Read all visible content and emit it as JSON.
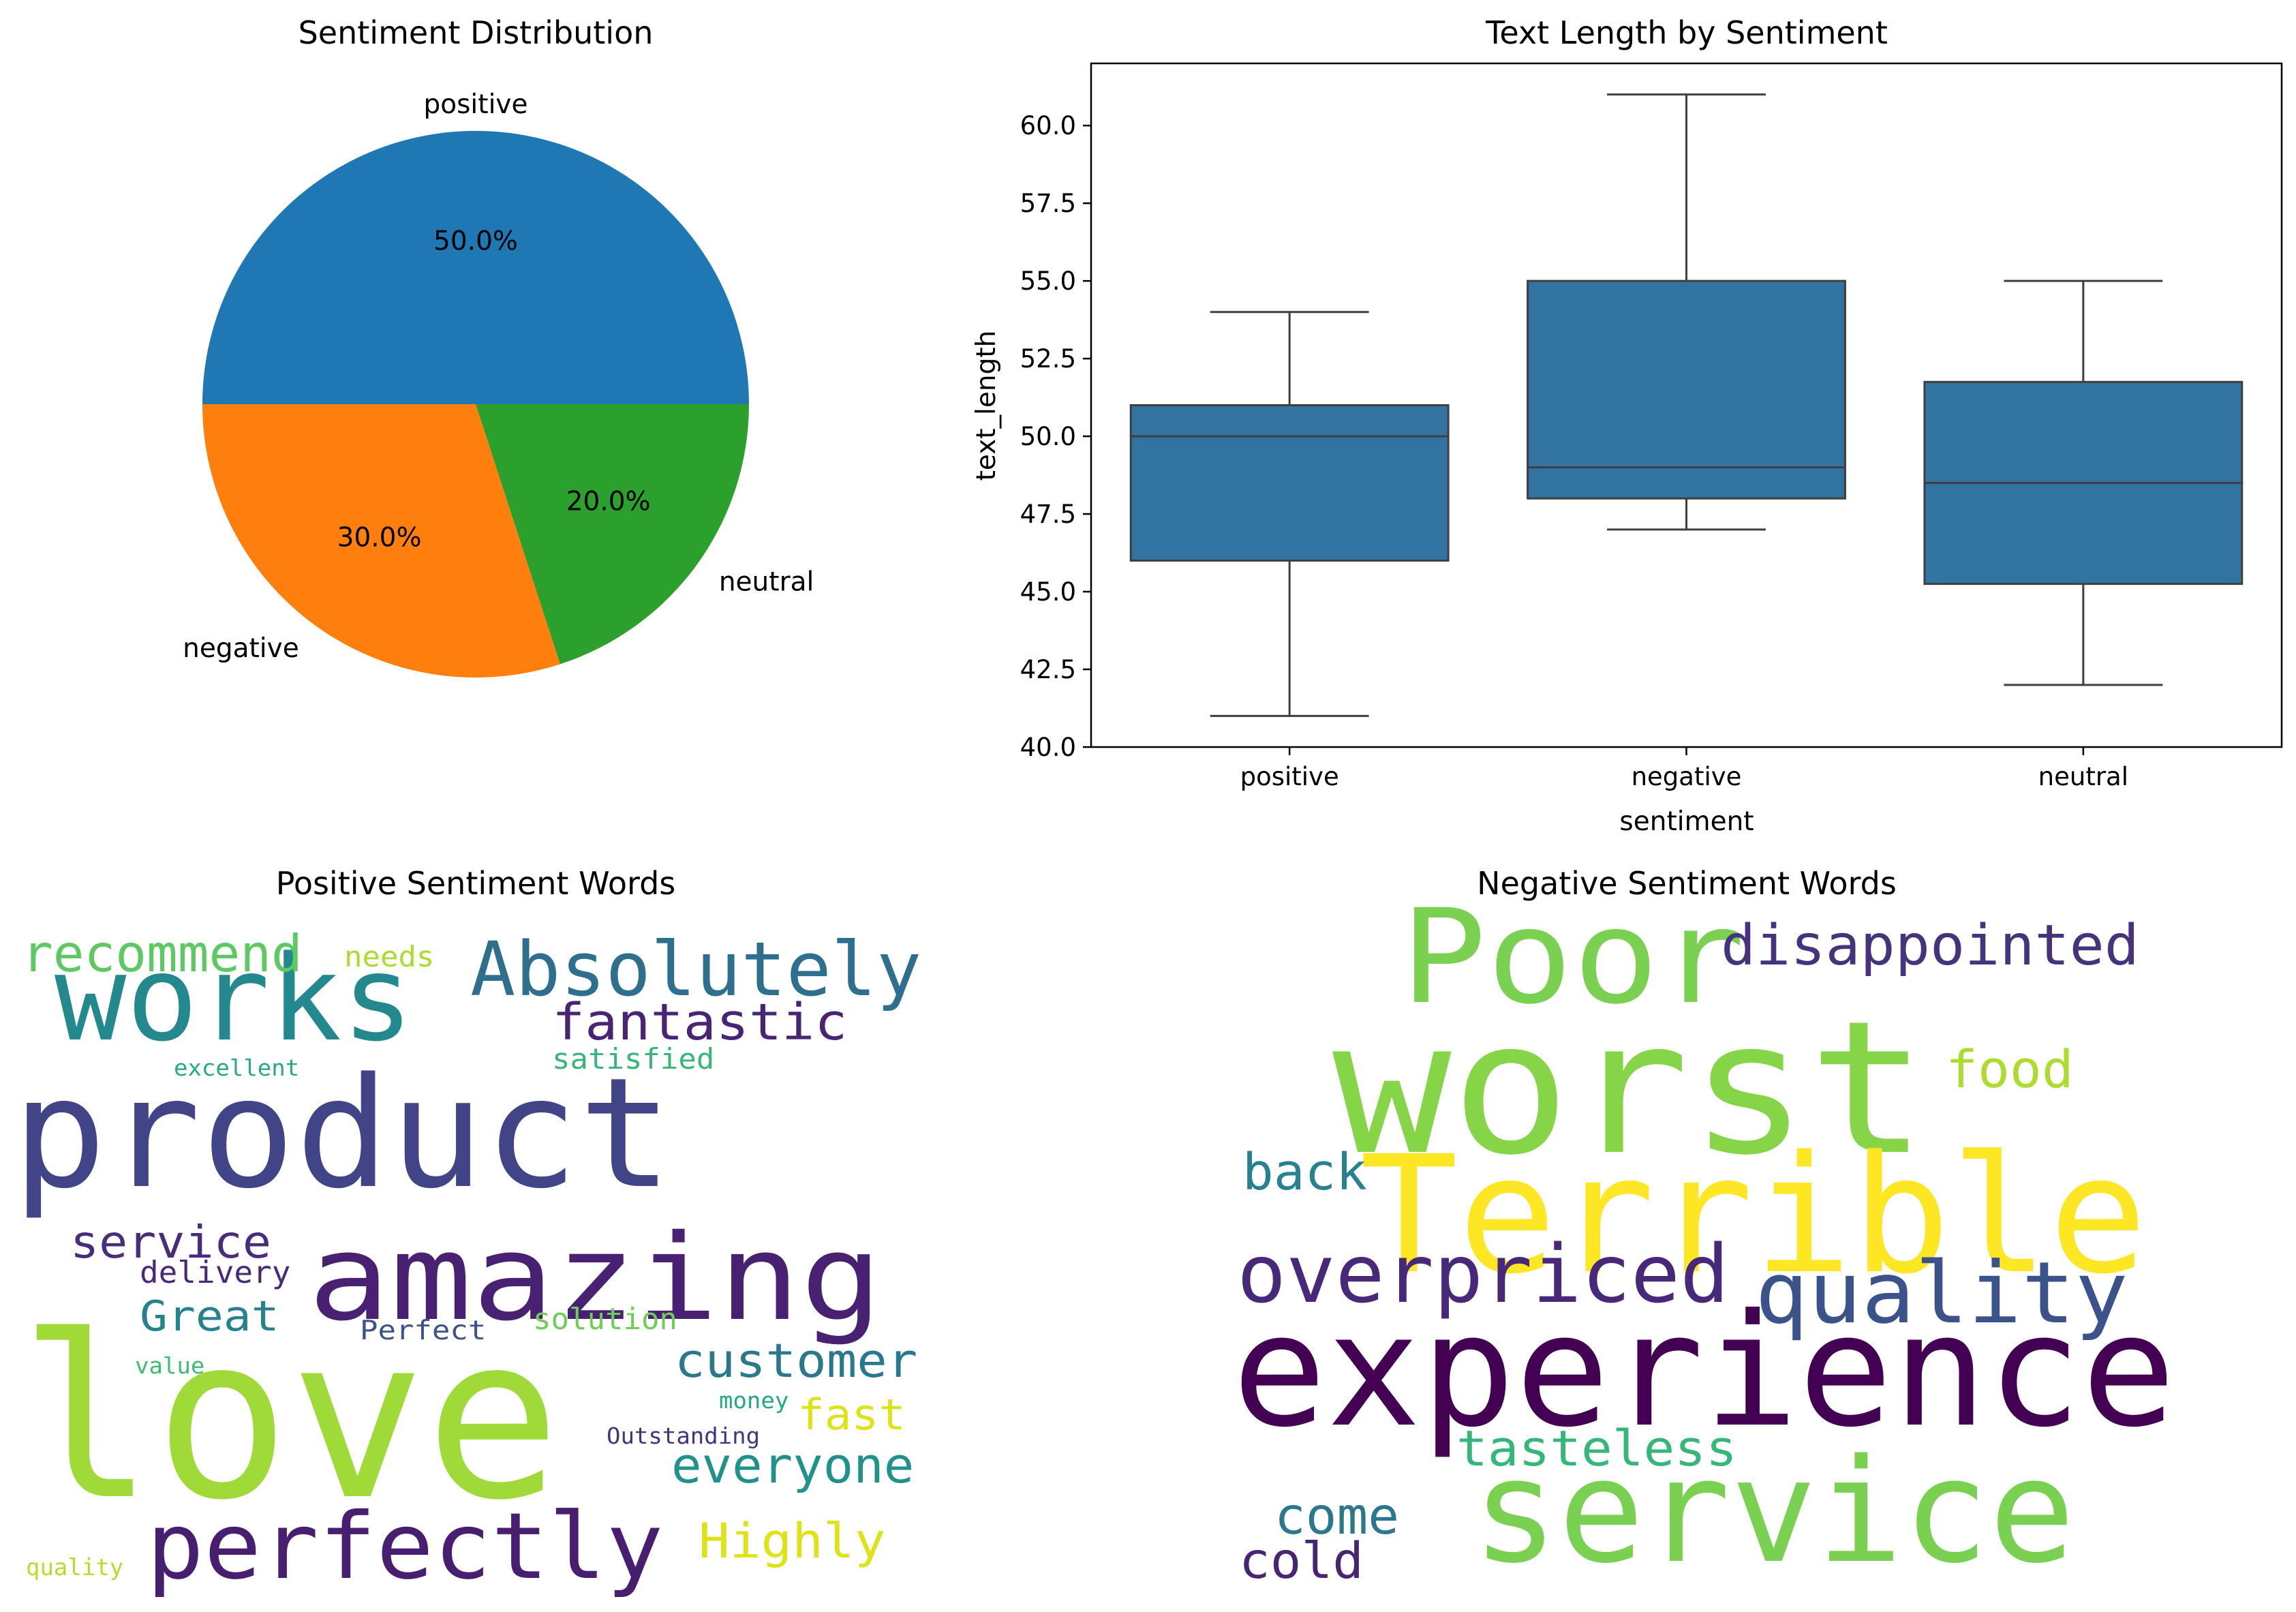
{
  "chart_data": [
    {
      "type": "pie",
      "title": "Sentiment Distribution",
      "slices": [
        {
          "label": "positive",
          "pct_label": "50.0%",
          "value": 50.0,
          "color": "#1f77b4"
        },
        {
          "label": "negative",
          "pct_label": "30.0%",
          "value": 30.0,
          "color": "#ff7f0e"
        },
        {
          "label": "neutral",
          "pct_label": "20.0%",
          "value": 20.0,
          "color": "#2ca02c"
        }
      ]
    },
    {
      "type": "box",
      "title": "Text Length by Sentiment",
      "xlabel": "sentiment",
      "ylabel": "text_length",
      "ylim": [
        40.0,
        62.0
      ],
      "yticks": [
        "40.0",
        "42.5",
        "45.0",
        "47.5",
        "50.0",
        "52.5",
        "55.0",
        "57.5",
        "60.0"
      ],
      "categories": [
        "positive",
        "negative",
        "neutral"
      ],
      "box_color": "#3274a1",
      "boxes": [
        {
          "category": "positive",
          "whisker_low": 41.0,
          "q1": 46.0,
          "median": 50.0,
          "q3": 51.0,
          "whisker_high": 54.0
        },
        {
          "category": "negative",
          "whisker_low": 47.0,
          "q1": 48.0,
          "median": 49.0,
          "q3": 55.0,
          "whisker_high": 61.0
        },
        {
          "category": "neutral",
          "whisker_low": 42.0,
          "q1": 45.25,
          "median": 48.5,
          "q3": 51.75,
          "whisker_high": 55.0
        }
      ]
    },
    {
      "type": "wordcloud",
      "title": "Positive Sentiment Words",
      "words": [
        {
          "text": "love",
          "color": "#a0da39"
        },
        {
          "text": "product",
          "color": "#414487"
        },
        {
          "text": "amazing",
          "color": "#482173"
        },
        {
          "text": "works",
          "color": "#23898e"
        },
        {
          "text": "perfectly",
          "color": "#481f70"
        },
        {
          "text": "Absolutely",
          "color": "#2e6f8e"
        },
        {
          "text": "fantastic",
          "color": "#482475"
        },
        {
          "text": "recommend",
          "color": "#5ec962"
        },
        {
          "text": "customer",
          "color": "#2a788e"
        },
        {
          "text": "everyone",
          "color": "#21918c"
        },
        {
          "text": "Highly",
          "color": "#dde318"
        },
        {
          "text": "service",
          "color": "#472d7b"
        },
        {
          "text": "Great",
          "color": "#26828e"
        },
        {
          "text": "fast",
          "color": "#dde318"
        },
        {
          "text": "needs",
          "color": "#addc30"
        },
        {
          "text": "satisfied",
          "color": "#35b779"
        },
        {
          "text": "delivery",
          "color": "#482878"
        },
        {
          "text": "Perfect",
          "color": "#3b528b"
        },
        {
          "text": "solution",
          "color": "#6ece58"
        },
        {
          "text": "excellent",
          "color": "#25ab82"
        },
        {
          "text": "value",
          "color": "#3dbc74"
        },
        {
          "text": "money",
          "color": "#22a884"
        },
        {
          "text": "Outstanding",
          "color": "#46337e"
        },
        {
          "text": "quality",
          "color": "#b5de2b"
        }
      ]
    },
    {
      "type": "wordcloud",
      "title": "Negative Sentiment Words",
      "words": [
        {
          "text": "worst",
          "color": "#86d549"
        },
        {
          "text": "Terrible",
          "color": "#fde725"
        },
        {
          "text": "experience",
          "color": "#440154"
        },
        {
          "text": "service",
          "color": "#7ad151"
        },
        {
          "text": "Poor",
          "color": "#7ad151"
        },
        {
          "text": "quality",
          "color": "#3b528b"
        },
        {
          "text": "overpriced",
          "color": "#482878"
        },
        {
          "text": "disappointed",
          "color": "#46337e"
        },
        {
          "text": "food",
          "color": "#addc30"
        },
        {
          "text": "back",
          "color": "#26828e"
        },
        {
          "text": "tasteless",
          "color": "#35b779"
        },
        {
          "text": "come",
          "color": "#2a788e"
        },
        {
          "text": "cold",
          "color": "#482475"
        }
      ]
    }
  ]
}
